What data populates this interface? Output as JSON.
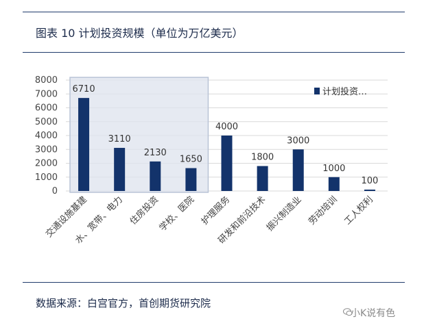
{
  "header": {
    "title": "图表 10  计划投资规模（单位为万亿美元）"
  },
  "footer": {
    "source": "数据来源：白宫官方，首创期货研究院"
  },
  "watermark": {
    "text": "小K说有色",
    "icon": "chat-bubble-icon"
  },
  "colors": {
    "bar": "#13336b",
    "highlight": "#dde3ee",
    "grid": "#d9d9d9",
    "rule": "#1f3a6b"
  },
  "chart_data": {
    "type": "bar",
    "title": "图表 10  计划投资规模（单位为万亿美元）",
    "categories": [
      "交通设施基建",
      "水、宽带、电力",
      "住房投资",
      "学校、医院",
      "护理服务",
      "研发和前沿技术",
      "振兴制造业",
      "劳动培训",
      "工人权利"
    ],
    "series": [
      {
        "name": "计划投资…",
        "values": [
          6710,
          3110,
          2130,
          1650,
          4000,
          1800,
          3000,
          1000,
          100
        ]
      }
    ],
    "data_labels": [
      "6710",
      "3110",
      "2130",
      "1650",
      "4000",
      "1800",
      "3000",
      "1000",
      "100"
    ],
    "yticks": [
      "0",
      "1000",
      "2000",
      "3000",
      "4000",
      "5000",
      "6000",
      "7000",
      "8000"
    ],
    "ylim": [
      0,
      8000
    ],
    "legend": {
      "label": "计划投资…",
      "position": "top-right"
    },
    "highlight_categories": [
      0,
      3
    ],
    "grid": true,
    "xlabel": "",
    "ylabel": ""
  }
}
